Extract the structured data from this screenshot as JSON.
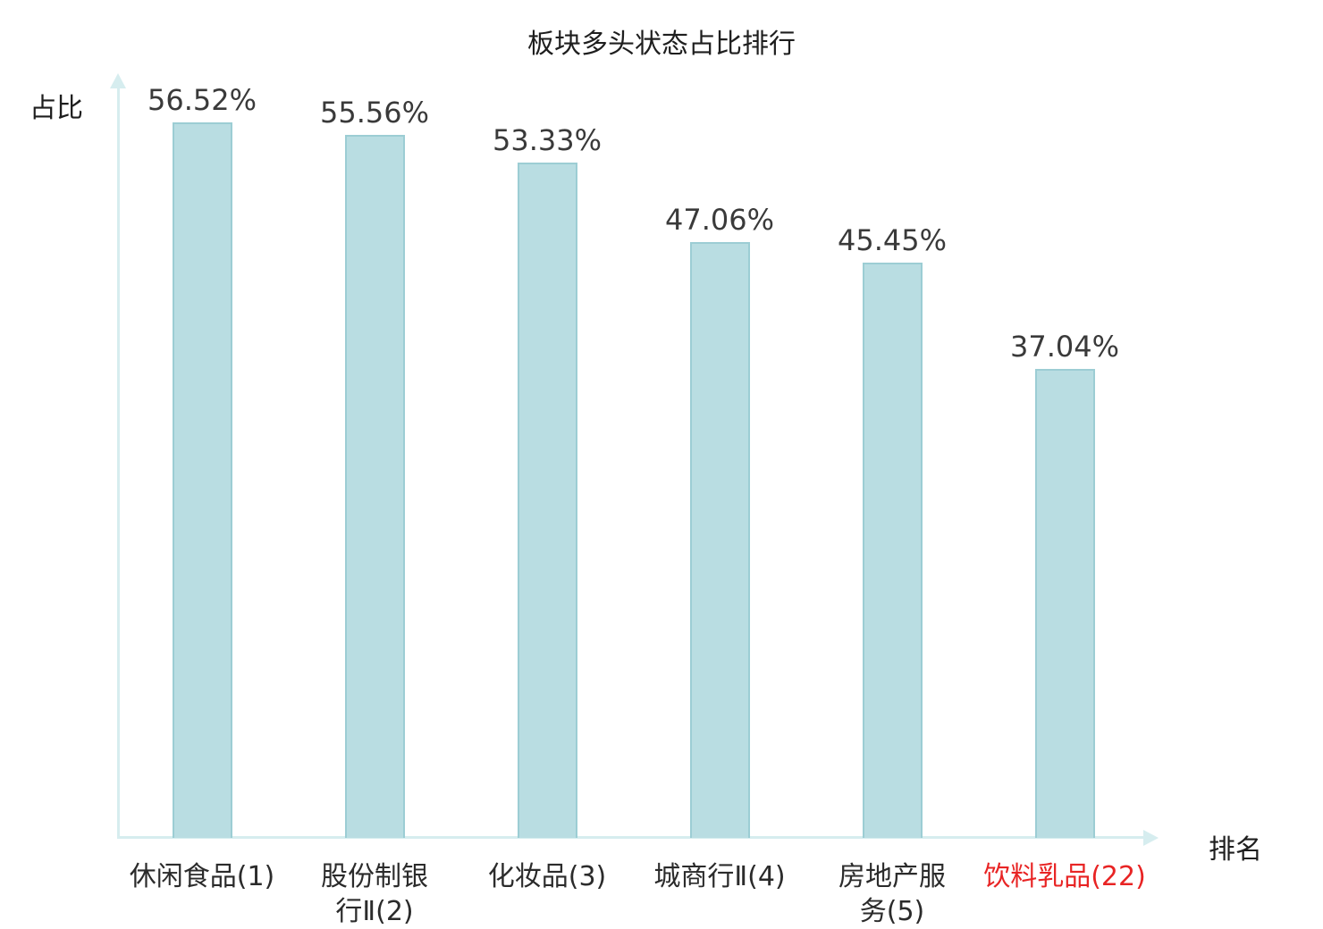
{
  "chart_data": {
    "type": "bar",
    "title": "板块多头状态占比排行",
    "ylabel": "占比",
    "xlabel": "排名",
    "categories": [
      "休闲食品(1)",
      "股份制银\n行Ⅱ(2)",
      "化妆品(3)",
      "城商行Ⅱ(4)",
      "房地产服\n务(5)",
      "饮料乳品(22)"
    ],
    "values": [
      56.52,
      55.56,
      53.33,
      47.06,
      45.45,
      37.04
    ],
    "value_labels": [
      "56.52%",
      "55.56%",
      "53.33%",
      "47.06%",
      "45.45%",
      "37.04%"
    ],
    "ylim": [
      0,
      60
    ],
    "grid": false,
    "legend": "none",
    "highlight_index": 5,
    "colors": {
      "bar_fill": "#b9dde2",
      "bar_border": "#9ccdd4",
      "axis": "#d6edef",
      "text": "#3a3a3a",
      "highlight_text": "#e82424"
    }
  }
}
